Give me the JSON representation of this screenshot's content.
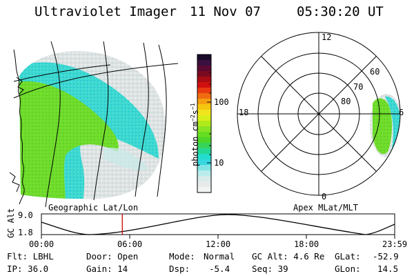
{
  "header": {
    "instrument": "Ultraviolet Imager",
    "date": "11 Nov 07",
    "time": "05:30:20 UT"
  },
  "colorbar": {
    "unit_label": "photon cm",
    "unit_exp1": "−2",
    "unit_mid": "s",
    "unit_exp2": "−1",
    "ticks": [
      "100",
      "10"
    ]
  },
  "polar_plot": {
    "top_label": "12",
    "left_label": "18",
    "right_label": "6",
    "bottom_label": "0",
    "lat_labels": [
      "80",
      "70",
      "60"
    ]
  },
  "panel_labels": {
    "left": "Geographic Lat/Lon",
    "right": "Apex MLat/MLT"
  },
  "altitude_plot": {
    "ylabel": "GC Alt",
    "ymax": "9.0",
    "ymin": "1.8",
    "xticks": [
      "00:00",
      "06:00",
      "12:00",
      "18:00",
      "23:59"
    ],
    "current_time_fraction": 0.229
  },
  "info": {
    "filter": "Flt: LBHL",
    "ip": "IP: 36.0",
    "door": "Door: Open",
    "gain": "Gain: 14",
    "mode_label": "Mode:",
    "mode_value": "Normal",
    "dsp_label": "Dsp:",
    "dsp_value": "-5.4",
    "gc_alt": "GC Alt: 4.6 Re",
    "seq": "Seq: 39",
    "glat_label": "GLat:",
    "glat_value": "-52.9",
    "glon_label": "GLon:",
    "glon_value": "14.5"
  },
  "colors": {
    "aurora_green": "#66dd22",
    "aurora_cyan": "#22ddcc",
    "low_gray": "#d8dcdc",
    "current_time_marker": "#cc0000"
  }
}
